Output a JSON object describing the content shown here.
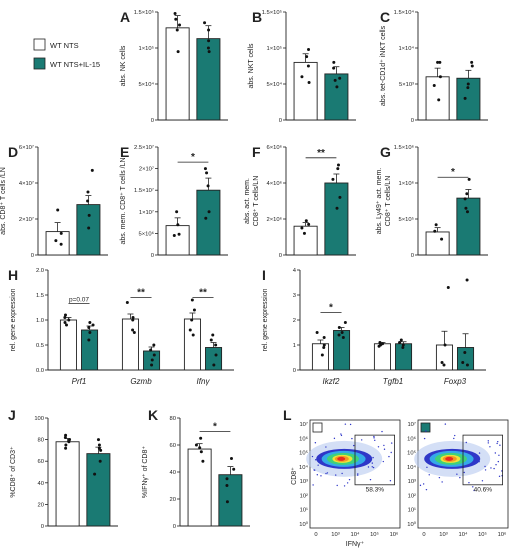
{
  "colors": {
    "wt": "#ffffff",
    "il15": "#1a7a73",
    "stroke": "#222222"
  },
  "legend": [
    {
      "label": "WT NTS",
      "color": "#ffffff"
    },
    {
      "label": "WT NTS+IL-15",
      "color": "#1a7a73"
    }
  ],
  "chart_data": [
    {
      "id": "A",
      "letter": "A",
      "type": "bar",
      "ylabel": "abs. NK cells",
      "ticks": [
        "0",
        "5×10⁴",
        "1×10⁵",
        "1.5×10⁵"
      ],
      "ylim": [
        0,
        150000
      ],
      "series": [
        {
          "name": "WT NTS",
          "mean": 128000,
          "sem": 17000,
          "points": [
            148000,
            132000,
            95000,
            125000,
            140000
          ]
        },
        {
          "name": "WT NTS+IL-15",
          "mean": 113000,
          "sem": 18000,
          "points": [
            100000,
            110000,
            125000,
            135000,
            95000
          ]
        }
      ],
      "sig": []
    },
    {
      "id": "B",
      "letter": "B",
      "type": "bar",
      "ylabel": "abs. NKT cells",
      "ticks": [
        "0",
        "5×10⁴",
        "1×10⁵",
        "1.5×10⁵"
      ],
      "ylim": [
        0,
        150000
      ],
      "series": [
        {
          "name": "WT NTS",
          "mean": 80000,
          "sem": 12000,
          "points": [
            98000,
            75000,
            60000,
            88000,
            52000
          ]
        },
        {
          "name": "WT NTS+IL-15",
          "mean": 64000,
          "sem": 10000,
          "points": [
            72000,
            58000,
            80000,
            55000,
            46000
          ]
        }
      ],
      "sig": []
    },
    {
      "id": "C",
      "letter": "C",
      "type": "bar",
      "ylabel": "abs. tet-CD1d⁺ iNKT cells",
      "ticks": [
        "0",
        "5×10³",
        "1×10⁴",
        "1.5×10⁴"
      ],
      "ylim": [
        0,
        15000
      ],
      "series": [
        {
          "name": "WT NTS",
          "mean": 6000,
          "sem": 1200,
          "points": [
            8000,
            6000,
            2800,
            4800,
            8000
          ]
        },
        {
          "name": "WT NTS+IL-15",
          "mean": 5800,
          "sem": 1100,
          "points": [
            3000,
            4500,
            7500,
            8000,
            5000
          ]
        }
      ],
      "sig": []
    },
    {
      "id": "D",
      "letter": "D",
      "type": "bar",
      "ylabel": "abs. CD8⁺ T cells /LN",
      "ticks": [
        "0",
        "2×10⁷",
        "4×10⁷",
        "6×10⁷"
      ],
      "ylim": [
        0,
        60000000
      ],
      "series": [
        {
          "name": "WT NTS",
          "mean": 13000000,
          "sem": 5000000,
          "points": [
            25000000,
            8000000,
            6000000,
            12000000
          ]
        },
        {
          "name": "WT NTS+IL-15",
          "mean": 28000000,
          "sem": 5000000,
          "points": [
            47000000,
            15000000,
            30000000,
            22000000,
            35000000
          ]
        }
      ],
      "sig": []
    },
    {
      "id": "E",
      "letter": "E",
      "type": "bar",
      "ylabel": "abs. mem. CD8⁺ T cells /LN",
      "ticks": [
        "0",
        "5×10⁶",
        "1×10⁷",
        "1.5×10⁷",
        "2×10⁷",
        "2.5×10⁷"
      ],
      "ylim": [
        0,
        25000000
      ],
      "series": [
        {
          "name": "WT NTS",
          "mean": 6800000,
          "sem": 1800000,
          "points": [
            4500000,
            7000000,
            10000000,
            4800000
          ]
        },
        {
          "name": "WT NTS+IL-15",
          "mean": 15000000,
          "sem": 2800000,
          "points": [
            20000000,
            16000000,
            10000000,
            8500000,
            19000000
          ]
        }
      ],
      "sig": [
        {
          "label": "*",
          "height": 21500000
        }
      ]
    },
    {
      "id": "F",
      "letter": "F",
      "type": "bar",
      "ylabel": "abs. act. mem. CD8⁺ T cells/LN",
      "ticks": [
        "0",
        "2×10⁶",
        "4×10⁶",
        "6×10⁶"
      ],
      "ylim": [
        0,
        6000000
      ],
      "series": [
        {
          "name": "WT NTS",
          "mean": 1600000,
          "sem": 200000,
          "points": [
            1900000,
            1500000,
            1200000,
            1700000
          ]
        },
        {
          "name": "WT NTS+IL-15",
          "mean": 4000000,
          "sem": 500000,
          "points": [
            5000000,
            4200000,
            4800000,
            3200000,
            2600000
          ]
        }
      ],
      "sig": [
        {
          "label": "**",
          "height": 5400000
        }
      ]
    },
    {
      "id": "G",
      "letter": "G",
      "type": "bar",
      "ylabel": "abs. Ly49⁺ act. mem. CD8⁺ T cells/LN",
      "ticks": [
        "0",
        "5×10⁵",
        "1×10⁶",
        "1.5×10⁶"
      ],
      "ylim": [
        0,
        1500000
      ],
      "series": [
        {
          "name": "WT NTS",
          "mean": 320000,
          "sem": 60000,
          "points": [
            420000,
            330000,
            220000
          ]
        },
        {
          "name": "WT NTS+IL-15",
          "mean": 790000,
          "sem": 120000,
          "points": [
            1050000,
            850000,
            650000,
            780000,
            600000
          ]
        }
      ],
      "sig": [
        {
          "label": "*",
          "height": 1080000
        }
      ]
    },
    {
      "id": "H",
      "letter": "H",
      "type": "bar",
      "ylabel": "rel. gene expression",
      "ticks": [
        "0.0",
        "0.5",
        "1.0",
        "1.5",
        "2.0"
      ],
      "ylim": [
        0,
        2
      ],
      "groups": [
        {
          "label": "Prf1",
          "series": [
            {
              "name": "WT NTS",
              "mean": 1.0,
              "sem": 0.05,
              "points": [
                1.1,
                0.95,
                1.05,
                0.9,
                1.0
              ]
            },
            {
              "name": "WT NTS+IL-15",
              "mean": 0.8,
              "sem": 0.08,
              "points": [
                0.95,
                0.75,
                0.6,
                0.85,
                0.9
              ]
            }
          ],
          "sig": {
            "label": "p=0.07",
            "height": 1.33
          }
        },
        {
          "label": "Gzmb",
          "series": [
            {
              "name": "WT NTS",
              "mean": 1.02,
              "sem": 0.1,
              "points": [
                1.35,
                1.05,
                0.8,
                0.75,
                1.0
              ]
            },
            {
              "name": "WT NTS+IL-15",
              "mean": 0.38,
              "sem": 0.08,
              "points": [
                0.5,
                0.3,
                0.2,
                0.4,
                0.1
              ]
            }
          ],
          "sig": {
            "label": "**",
            "height": 1.45
          }
        },
        {
          "label": "Ifnγ",
          "series": [
            {
              "name": "WT NTS",
              "mean": 1.02,
              "sem": 0.12,
              "points": [
                1.4,
                1.2,
                0.8,
                0.7,
                1.0
              ]
            },
            {
              "name": "WT NTS+IL-15",
              "mean": 0.45,
              "sem": 0.1,
              "points": [
                0.7,
                0.6,
                0.3,
                0.1,
                0.5
              ]
            }
          ],
          "sig": {
            "label": "**",
            "height": 1.45
          }
        }
      ]
    },
    {
      "id": "I",
      "letter": "I",
      "type": "bar",
      "ylabel": "rel. gene expression",
      "ticks": [
        "0",
        "1",
        "2",
        "3",
        "4"
      ],
      "ylim": [
        0,
        4
      ],
      "groups": [
        {
          "label": "Ikzf2",
          "series": [
            {
              "name": "WT NTS",
              "mean": 1.05,
              "sem": 0.15,
              "points": [
                1.3,
                0.9,
                0.6,
                1.5,
                1.0
              ]
            },
            {
              "name": "WT NTS+IL-15",
              "mean": 1.58,
              "sem": 0.12,
              "points": [
                1.9,
                1.5,
                1.4,
                1.3,
                1.7
              ]
            }
          ],
          "sig": {
            "label": "*",
            "height": 2.3
          }
        },
        {
          "label": "Tgfb1",
          "series": [
            {
              "name": "WT NTS",
              "mean": 1.05,
              "sem": 0.05,
              "points": [
                1.1,
                1.0,
                0.95,
                1.05
              ]
            },
            {
              "name": "WT NTS+IL-15",
              "mean": 1.05,
              "sem": 0.08,
              "points": [
                1.2,
                1.0,
                0.9,
                1.1
              ]
            }
          ]
        },
        {
          "label": "Foxp3",
          "series": [
            {
              "name": "WT NTS",
              "mean": 1.0,
              "sem": 0.55,
              "points": [
                3.3,
                1.0,
                0.3,
                0.2
              ]
            },
            {
              "name": "WT NTS+IL-15",
              "mean": 0.9,
              "sem": 0.55,
              "points": [
                3.6,
                0.7,
                0.3,
                0.2
              ]
            }
          ]
        }
      ]
    },
    {
      "id": "J",
      "letter": "J",
      "type": "bar",
      "ylabel": "%CD8⁺ of CD3⁺",
      "ticks": [
        "0",
        "20",
        "40",
        "60",
        "80",
        "100"
      ],
      "ylim": [
        0,
        100
      ],
      "series": [
        {
          "name": "WT NTS",
          "mean": 78,
          "sem": 3,
          "points": [
            82,
            75,
            72,
            80,
            78,
            84
          ]
        },
        {
          "name": "WT NTS+IL-15",
          "mean": 67,
          "sem": 6,
          "points": [
            80,
            72,
            60,
            48,
            70,
            75
          ]
        }
      ],
      "sig": []
    },
    {
      "id": "K",
      "letter": "K",
      "type": "bar",
      "ylabel": "%IFNγ⁺ of CD8⁺",
      "ticks": [
        "0",
        "20",
        "40",
        "60",
        "80"
      ],
      "ylim": [
        0,
        80
      ],
      "series": [
        {
          "name": "WT NTS",
          "mean": 57,
          "sem": 4,
          "points": [
            65,
            58,
            48,
            55,
            60
          ]
        },
        {
          "name": "WT NTS+IL-15",
          "mean": 38,
          "sem": 6,
          "points": [
            50,
            42,
            35,
            18,
            30
          ]
        }
      ],
      "sig": [
        {
          "label": "*",
          "height": 70
        }
      ]
    }
  ],
  "flow": {
    "letter": "L",
    "ylabel": "CD8⁺",
    "xlabel": "IFNγ⁺",
    "yticks": [
      "10⁰",
      "10¹",
      "10²",
      "10³",
      "10⁴",
      "10⁵",
      "10⁶",
      "10⁷"
    ],
    "xticks": [
      "0",
      "10³",
      "10⁴",
      "10⁵",
      "10⁶"
    ],
    "plots": [
      {
        "name": "WT NTS",
        "color": "#ffffff",
        "gate_pct": "58.3%"
      },
      {
        "name": "WT NTS+IL-15",
        "color": "#1a7a73",
        "gate_pct": "40.6%"
      }
    ]
  }
}
